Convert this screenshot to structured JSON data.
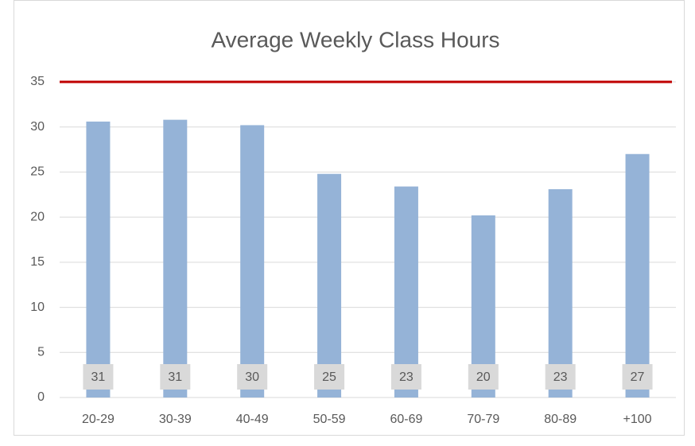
{
  "chart_data": {
    "type": "bar",
    "title": "Average Weekly Class Hours",
    "categories": [
      "20-29",
      "30-39",
      "40-49",
      "50-59",
      "60-69",
      "70-79",
      "80-89",
      "+100"
    ],
    "values": [
      30.6,
      30.8,
      30.2,
      24.8,
      23.4,
      20.2,
      23.1,
      27.0
    ],
    "value_labels": [
      "31",
      "31",
      "30",
      "25",
      "23",
      "20",
      "23",
      "27"
    ],
    "color": "#95b3d7",
    "reference_line": {
      "value": 35,
      "color": "#c00000"
    },
    "ylim": [
      0,
      35
    ],
    "yticks": [
      0,
      5,
      10,
      15,
      20,
      25,
      30,
      35
    ],
    "grid": true
  }
}
